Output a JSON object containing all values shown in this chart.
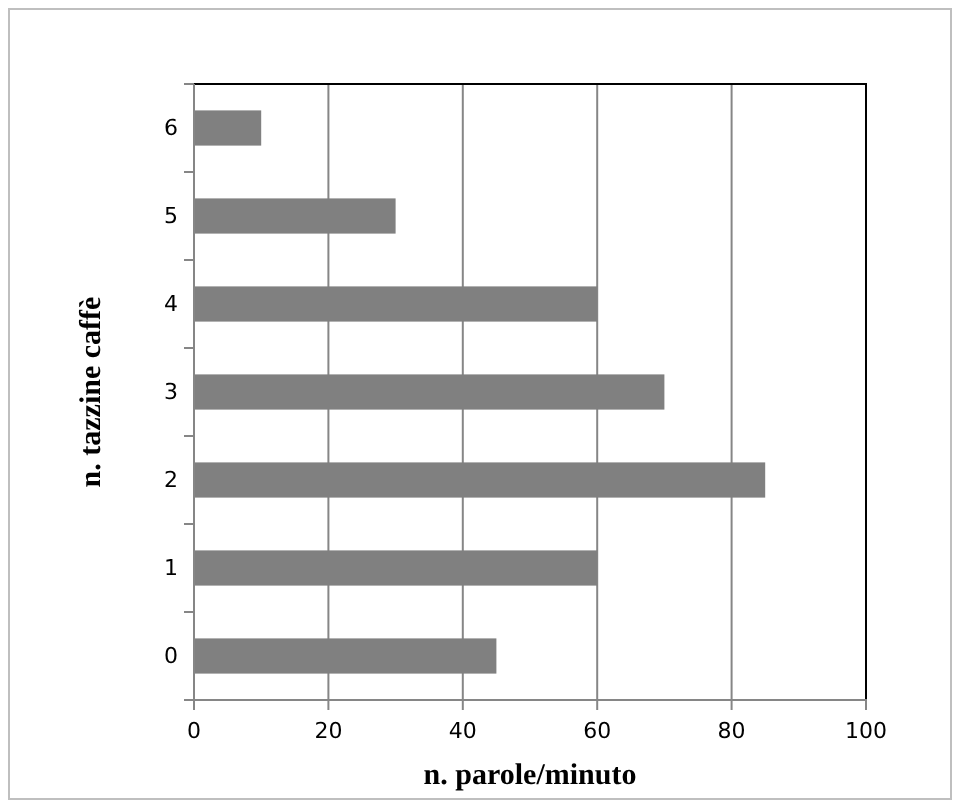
{
  "chart_data": {
    "type": "bar",
    "orientation": "horizontal",
    "xlabel": "n. parole/minuto",
    "ylabel": "n. tazzine caffè",
    "categories": [
      "6",
      "5",
      "4",
      "3",
      "2",
      "1",
      "0"
    ],
    "values": [
      10,
      30,
      60,
      70,
      85,
      60,
      45
    ],
    "color": "#808080",
    "xlim": [
      0,
      100
    ],
    "xticks": [
      0,
      20,
      40,
      60,
      80,
      100
    ],
    "grid": "x"
  }
}
